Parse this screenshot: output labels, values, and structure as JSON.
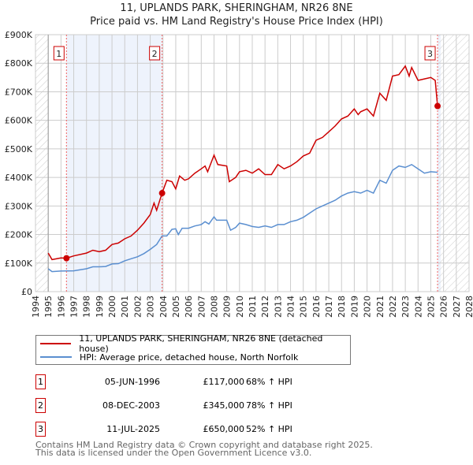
{
  "chart_data": {
    "type": "line",
    "title": "11, UPLANDS PARK, SHERINGHAM, NR26 8NE",
    "subtitle": "Price paid vs. HM Land Registry's House Price Index (HPI)",
    "xlim": [
      1994,
      2028
    ],
    "ylim": [
      0,
      900000
    ],
    "x_ticks": [
      "1994",
      "1995",
      "1996",
      "1997",
      "1998",
      "1999",
      "2000",
      "2001",
      "2002",
      "2003",
      "2004",
      "2005",
      "2006",
      "2007",
      "2008",
      "2009",
      "2010",
      "2011",
      "2012",
      "2013",
      "2014",
      "2015",
      "2016",
      "2017",
      "2018",
      "2019",
      "2020",
      "2021",
      "2022",
      "2023",
      "2024",
      "2025",
      "2026",
      "2027",
      "2028"
    ],
    "y_ticks": [
      {
        "v": 0,
        "label": "£0"
      },
      {
        "v": 100000,
        "label": "£100K"
      },
      {
        "v": 200000,
        "label": "£200K"
      },
      {
        "v": 300000,
        "label": "£300K"
      },
      {
        "v": 400000,
        "label": "£400K"
      },
      {
        "v": 500000,
        "label": "£500K"
      },
      {
        "v": 600000,
        "label": "£600K"
      },
      {
        "v": 700000,
        "label": "£700K"
      },
      {
        "v": 800000,
        "label": "£800K"
      },
      {
        "v": 900000,
        "label": "£900K"
      }
    ],
    "grid": true,
    "series": [
      {
        "name": "11, UPLANDS PARK, SHERINGHAM, NR26 8NE (detached house)",
        "color": "#cc0000",
        "x": [
          1995,
          1995.3,
          1996,
          1996.43,
          1997,
          1998,
          1998.5,
          1999,
          1999.5,
          2000,
          2000.5,
          2001,
          2001.5,
          2002,
          2002.5,
          2003,
          2003.3,
          2003.5,
          2003.93,
          2004.3,
          2004.7,
          2005,
          2005.3,
          2005.7,
          2006,
          2006.5,
          2007,
          2007.3,
          2007.5,
          2008,
          2008.3,
          2009,
          2009.2,
          2009.7,
          2010,
          2010.5,
          2011,
          2011.5,
          2012,
          2012.5,
          2013,
          2013.5,
          2014,
          2014.5,
          2015,
          2015.5,
          2016,
          2016.5,
          2017,
          2017.5,
          2018,
          2018.5,
          2019,
          2019.3,
          2019.5,
          2020,
          2020.5,
          2021,
          2021.5,
          2022,
          2022.5,
          2023,
          2023.3,
          2023.5,
          2024,
          2024.5,
          2025,
          2025.35,
          2025.53
        ],
        "y": [
          135000,
          112000,
          118000,
          117000,
          125000,
          135000,
          145000,
          140000,
          145000,
          165000,
          170000,
          185000,
          195000,
          215000,
          240000,
          270000,
          310000,
          285000,
          345000,
          390000,
          385000,
          360000,
          405000,
          390000,
          395000,
          415000,
          430000,
          440000,
          420000,
          478000,
          445000,
          440000,
          385000,
          400000,
          420000,
          425000,
          415000,
          430000,
          410000,
          410000,
          445000,
          430000,
          440000,
          455000,
          475000,
          485000,
          530000,
          540000,
          560000,
          580000,
          605000,
          615000,
          640000,
          620000,
          630000,
          640000,
          615000,
          695000,
          670000,
          755000,
          760000,
          790000,
          755000,
          785000,
          740000,
          745000,
          750000,
          740000,
          650000
        ]
      },
      {
        "name": "HPI: Average price, detached house, North Norfolk",
        "color": "#5b8fd0",
        "x": [
          1995,
          1995.3,
          1996,
          1997,
          1998,
          1998.5,
          1999,
          1999.5,
          2000,
          2000.5,
          2001,
          2001.5,
          2002,
          2002.5,
          2003,
          2003.5,
          2003.93,
          2004.3,
          2004.7,
          2005,
          2005.2,
          2005.5,
          2006,
          2006.5,
          2007,
          2007.3,
          2007.6,
          2008,
          2008.2,
          2009,
          2009.3,
          2009.7,
          2010,
          2010.5,
          2011,
          2011.5,
          2012,
          2012.5,
          2013,
          2013.5,
          2014,
          2014.5,
          2015,
          2015.5,
          2016,
          2016.5,
          2017,
          2017.5,
          2018,
          2018.5,
          2019,
          2019.5,
          2020,
          2020.5,
          2021,
          2021.5,
          2022,
          2022.5,
          2023,
          2023.5,
          2024,
          2024.5,
          2025,
          2025.53
        ],
        "y": [
          80000,
          70000,
          72000,
          73000,
          80000,
          87000,
          87000,
          88000,
          97000,
          98000,
          108000,
          115000,
          122000,
          133000,
          148000,
          165000,
          195000,
          195000,
          218000,
          220000,
          200000,
          222000,
          222000,
          230000,
          235000,
          245000,
          237000,
          262000,
          250000,
          250000,
          215000,
          225000,
          240000,
          235000,
          228000,
          225000,
          230000,
          225000,
          235000,
          235000,
          245000,
          250000,
          260000,
          275000,
          290000,
          300000,
          310000,
          320000,
          335000,
          345000,
          350000,
          345000,
          355000,
          345000,
          390000,
          380000,
          425000,
          440000,
          435000,
          445000,
          430000,
          415000,
          420000,
          418000
        ]
      }
    ],
    "sales": [
      {
        "n": "1",
        "date": "05-JUN-1996",
        "x": 1996.43,
        "price": "£117,000",
        "value": 117000,
        "hpi": "68% ↑ HPI"
      },
      {
        "n": "2",
        "date": "08-DEC-2003",
        "x": 2003.93,
        "price": "£345,000",
        "value": 345000,
        "hpi": "78% ↑ HPI"
      },
      {
        "n": "3",
        "date": "11-JUL-2025",
        "x": 2025.53,
        "price": "£650,000",
        "value": 650000,
        "hpi": "52% ↑ HPI"
      }
    ],
    "legend_position": "below"
  },
  "footer": {
    "line1": "Contains HM Land Registry data © Crown copyright and database right 2025.",
    "line2": "This data is licensed under the Open Government Licence v3.0."
  }
}
